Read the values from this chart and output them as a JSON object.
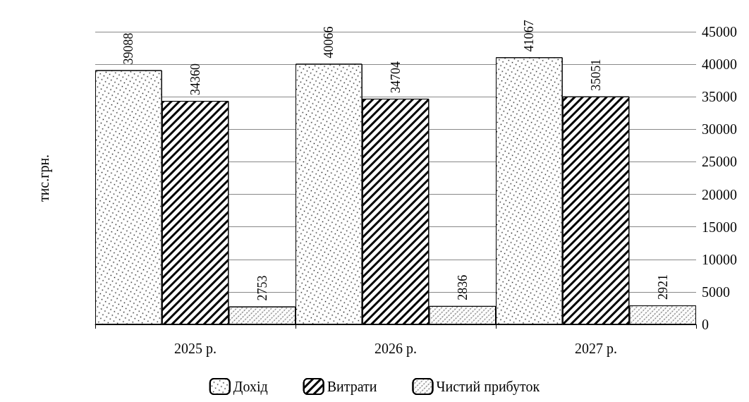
{
  "chart_data": {
    "type": "bar",
    "ylabel": "тис.грн.",
    "categories": [
      "2025 р.",
      "2026 р.",
      "2027 р."
    ],
    "series": [
      {
        "name": "Дохід",
        "color": "#ffffff",
        "values": [
          39088,
          40066,
          41067
        ]
      },
      {
        "name": "Витрати",
        "color": "#ffffff",
        "values": [
          34360,
          34704,
          35051
        ]
      },
      {
        "name": "Чистий прибуток",
        "color": "#ffffff",
        "values": [
          2753,
          2836,
          2921
        ]
      }
    ],
    "ylim": [
      0,
      45000
    ],
    "yticks": [
      0,
      5000,
      10000,
      15000,
      20000,
      25000,
      30000,
      35000,
      40000,
      45000
    ],
    "grid": "y",
    "legend": "bottom",
    "data_labels": true
  }
}
